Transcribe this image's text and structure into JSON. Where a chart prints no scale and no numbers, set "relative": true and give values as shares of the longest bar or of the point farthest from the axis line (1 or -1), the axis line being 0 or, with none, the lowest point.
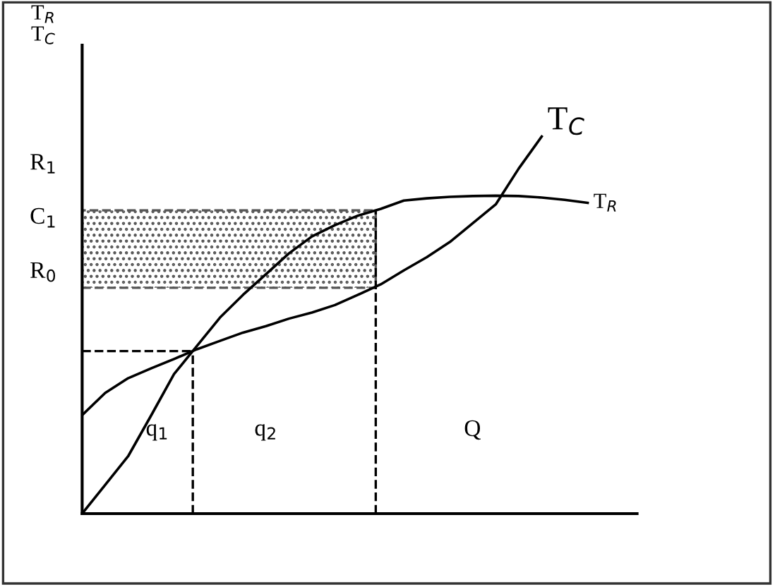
{
  "chart_data": {
    "type": "line",
    "relative": true,
    "ylabel": "T$_{R}$\nT$_{C}$",
    "legend": false,
    "marker": "none",
    "line_style": "solid",
    "categories": [
      null,
      null,
      null,
      null,
      null,
      null,
      null,
      null,
      null,
      null,
      null,
      null,
      null,
      null,
      null,
      null,
      null,
      null,
      null,
      null,
      null,
      null,
      null
    ],
    "series": [
      {
        "name": "T$_{R}$",
        "color": "#000000",
        "values": [
          0,
          0.076,
          0.152,
          0.26,
          0.37,
          0.445,
          0.52,
          0.58,
          0.635,
          0.69,
          0.735,
          0.765,
          0.79,
          0.808,
          0.83,
          0.836,
          0.84,
          0.842,
          0.843,
          0.842,
          0.838,
          0.832,
          0.824
        ]
      },
      {
        "name": "T$_{C}$",
        "color": "#000000",
        "values": [
          0.261,
          0.32,
          0.359,
          0.385,
          0.41,
          0.436,
          0.458,
          0.48,
          0.497,
          0.517,
          0.533,
          0.553,
          0.58,
          0.608,
          0.645,
          0.68,
          0.72,
          0.77,
          0.82,
          0.915,
          1.0,
          null,
          null
        ]
      }
    ],
    "ref_lines": [
      {
        "axis": "y",
        "value": 0.431,
        "line_style": "dashed"
      }
    ],
    "bands": [
      {
        "axis": "y",
        "from": 0.599,
        "to": 0.804,
        "color": "#555555"
      }
    ],
    "annotations": [
      "R$_{1}$",
      "C$_{1}$",
      "R$_{0}$",
      "q$_{1}$",
      "q$_{2}$",
      "Q"
    ]
  }
}
